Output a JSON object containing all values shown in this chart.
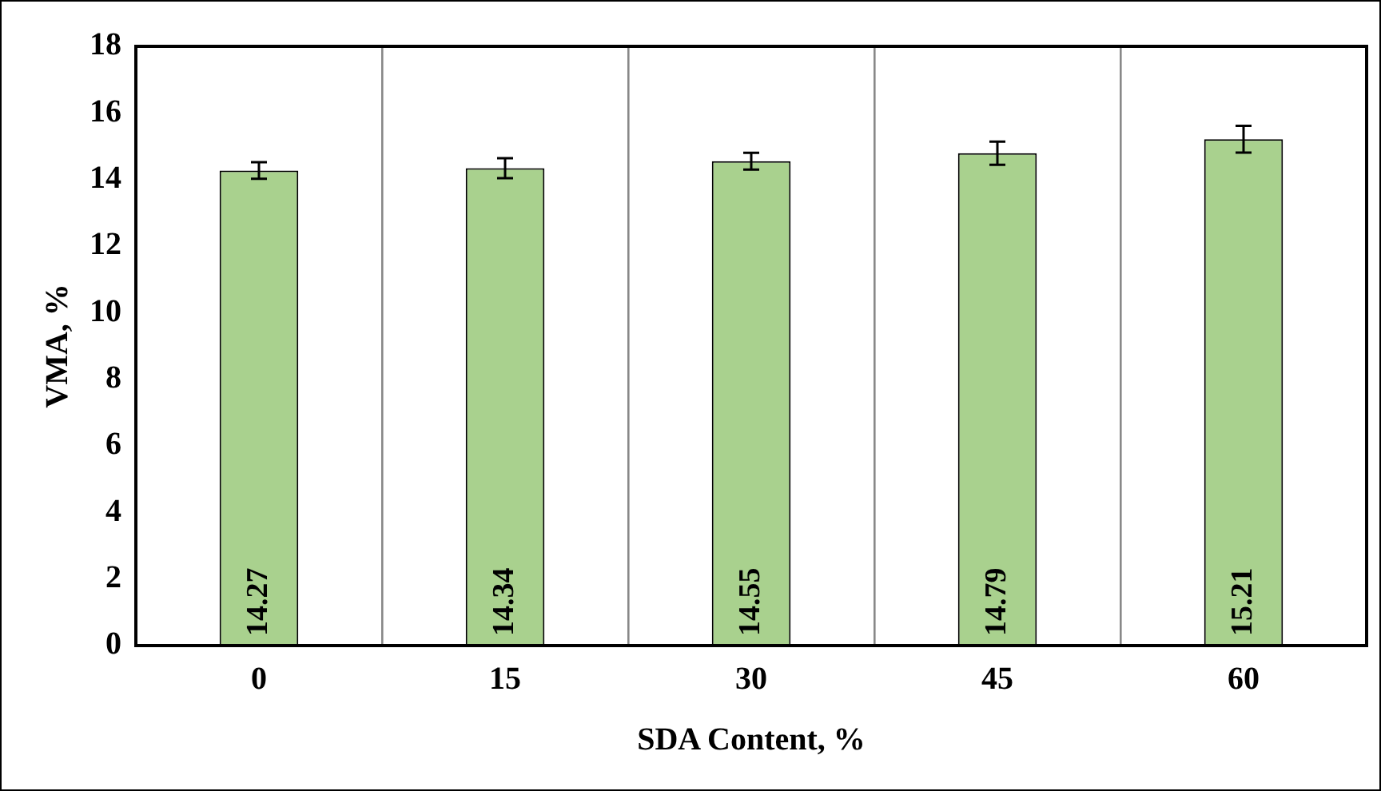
{
  "chart_data": {
    "type": "bar",
    "xlabel": "SDA Content, %",
    "ylabel": "VMA, %",
    "categories": [
      "0",
      "15",
      "30",
      "45",
      "60"
    ],
    "values": [
      14.27,
      14.34,
      14.55,
      14.79,
      15.21
    ],
    "errors": [
      0.25,
      0.3,
      0.25,
      0.35,
      0.4
    ],
    "color": "#a9d18e",
    "ylim": [
      0,
      18
    ],
    "yticks": [
      0,
      2,
      4,
      6,
      8,
      10,
      12,
      14,
      16,
      18
    ],
    "grid": "x",
    "data_labels": true,
    "legend": false
  }
}
